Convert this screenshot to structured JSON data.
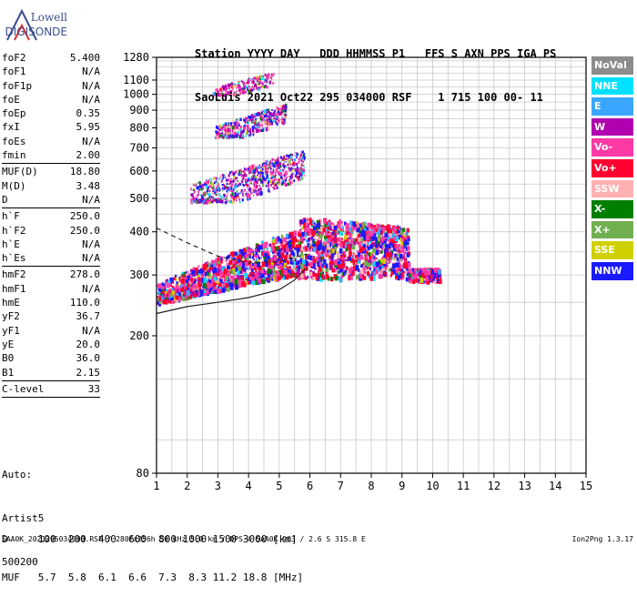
{
  "logo": {
    "line1": "Lowell",
    "line2": "DIGISONDE"
  },
  "header": {
    "line1": "Station YYYY DAY   DDD HHMMSS P1   FFS S AXN PPS IGA PS",
    "line2": "SaoLuis 2021 Oct22 295 034000 RSF    1 715 100 00- 11"
  },
  "params": [
    [
      {
        "k": "foF2",
        "v": "5.400"
      },
      {
        "k": "foF1",
        "v": "N/A"
      },
      {
        "k": "foF1p",
        "v": "N/A"
      },
      {
        "k": "foE",
        "v": "N/A"
      },
      {
        "k": "foEp",
        "v": "0.35"
      },
      {
        "k": "fxI",
        "v": "5.95"
      },
      {
        "k": "foEs",
        "v": "N/A"
      },
      {
        "k": "fmin",
        "v": "2.00"
      }
    ],
    [
      {
        "k": "MUF(D)",
        "v": "18.80"
      },
      {
        "k": "M(D)",
        "v": "3.48"
      },
      {
        "k": "D",
        "v": "N/A"
      }
    ],
    [
      {
        "k": "h`F",
        "v": "250.0"
      },
      {
        "k": "h`F2",
        "v": "250.0"
      },
      {
        "k": "h`E",
        "v": "N/A"
      },
      {
        "k": "h`Es",
        "v": "N/A"
      }
    ],
    [
      {
        "k": "hmF2",
        "v": "278.0"
      },
      {
        "k": "hmF1",
        "v": "N/A"
      },
      {
        "k": "hmE",
        "v": "110.0"
      },
      {
        "k": "yF2",
        "v": "36.7"
      },
      {
        "k": "yF1",
        "v": "N/A"
      },
      {
        "k": "yE",
        "v": "20.0"
      },
      {
        "k": "B0",
        "v": "36.0"
      },
      {
        "k": "B1",
        "v": "2.15"
      }
    ],
    [
      {
        "k": "C-level",
        "v": "33"
      }
    ]
  ],
  "auto": {
    "l1": "Auto:",
    "l2": "Artist5",
    "l3": "500200"
  },
  "legend": [
    {
      "label": "NoVal",
      "color": "#8c8c8c"
    },
    {
      "label": "NNE",
      "color": "#00e0ff"
    },
    {
      "label": "E",
      "color": "#3aa6ff"
    },
    {
      "label": "W",
      "color": "#b000b0"
    },
    {
      "label": "Vo-",
      "color": "#ff3aa6"
    },
    {
      "label": "Vo+",
      "color": "#ff0030"
    },
    {
      "label": "SSW",
      "color": "#ffb0b0"
    },
    {
      "label": "X-",
      "color": "#008000"
    },
    {
      "label": "X+",
      "color": "#70b050"
    },
    {
      "label": "SSE",
      "color": "#d0d000"
    },
    {
      "label": "NNW",
      "color": "#1a1aff"
    }
  ],
  "dtable": {
    "row1": "D     100  200  400  600  800 1000 1500 3000 [km]",
    "row2": "MUF   5.7  5.8  6.1  6.6  7.3  8.3 11.2 18.8 [MHz]"
  },
  "footer": {
    "left": "SAA0K_2021295034000.RSF / 280fx256h 50 kHz 5.0 km / DPS-4 SAA0K 903 / 2.6 S 315.8 E",
    "right": "Ion2Png 1.3.17"
  },
  "chart_data": {
    "type": "scatter",
    "title": "",
    "xlabel": "",
    "ylabel": "",
    "x_ticks": [
      "1",
      "2",
      "3",
      "4",
      "5",
      "6",
      "7",
      "8",
      "9",
      "10",
      "11",
      "12",
      "13",
      "14",
      "15"
    ],
    "y_ticks": [
      "80",
      "200",
      "300",
      "400",
      "500",
      "600",
      "700",
      "800",
      "900",
      "1000",
      "1100",
      "1280"
    ],
    "xlim": [
      1,
      15
    ],
    "ylim": [
      80,
      1280
    ],
    "grid": true,
    "legend_position": "right",
    "series": [
      {
        "name": "NoVal",
        "color": "#8c8c8c"
      },
      {
        "name": "NNE",
        "color": "#00e0ff"
      },
      {
        "name": "E",
        "color": "#3aa6ff"
      },
      {
        "name": "W",
        "color": "#b000b0"
      },
      {
        "name": "Vo-",
        "color": "#ff3aa6"
      },
      {
        "name": "Vo+",
        "color": "#ff0030"
      },
      {
        "name": "SSW",
        "color": "#ffb0b0"
      },
      {
        "name": "X-",
        "color": "#008000"
      },
      {
        "name": "X+",
        "color": "#70b050"
      },
      {
        "name": "SSE",
        "color": "#d0d000"
      },
      {
        "name": "NNW",
        "color": "#1a1aff"
      }
    ],
    "echo_regions": [
      {
        "trace": "F 1st hop",
        "x_range": [
          1.0,
          10.2
        ],
        "h_range": [
          245,
          440
        ],
        "dominant": [
          "Vo+",
          "NNW",
          "Vo-"
        ]
      },
      {
        "trace": "F 2nd hop",
        "x_range": [
          2.1,
          5.8
        ],
        "h_range": [
          490,
          710
        ],
        "dominant": [
          "W",
          "Vo-",
          "NNW"
        ]
      },
      {
        "trace": "F 3rd hop",
        "x_range": [
          2.9,
          5.2
        ],
        "h_range": [
          755,
          960
        ],
        "dominant": [
          "W",
          "Vo-",
          "NNW"
        ]
      },
      {
        "trace": "F 4th hop",
        "x_range": [
          2.8,
          4.8
        ],
        "h_range": [
          1000,
          1180
        ],
        "dominant": [
          "W",
          "Vo-"
        ]
      }
    ],
    "model_curves": [
      {
        "name": "o-trace",
        "style": "solid",
        "points": [
          [
            1.0,
            232
          ],
          [
            2.0,
            243
          ],
          [
            3.0,
            250
          ],
          [
            4.0,
            258
          ],
          [
            5.0,
            272
          ],
          [
            5.5,
            290
          ],
          [
            5.9,
            315
          ]
        ]
      },
      {
        "name": "x-trace",
        "style": "dashed",
        "points": [
          [
            1.0,
            410
          ],
          [
            2.0,
            372
          ],
          [
            3.0,
            340
          ],
          [
            4.0,
            325
          ],
          [
            5.0,
            328
          ],
          [
            5.9,
            345
          ]
        ]
      }
    ]
  }
}
